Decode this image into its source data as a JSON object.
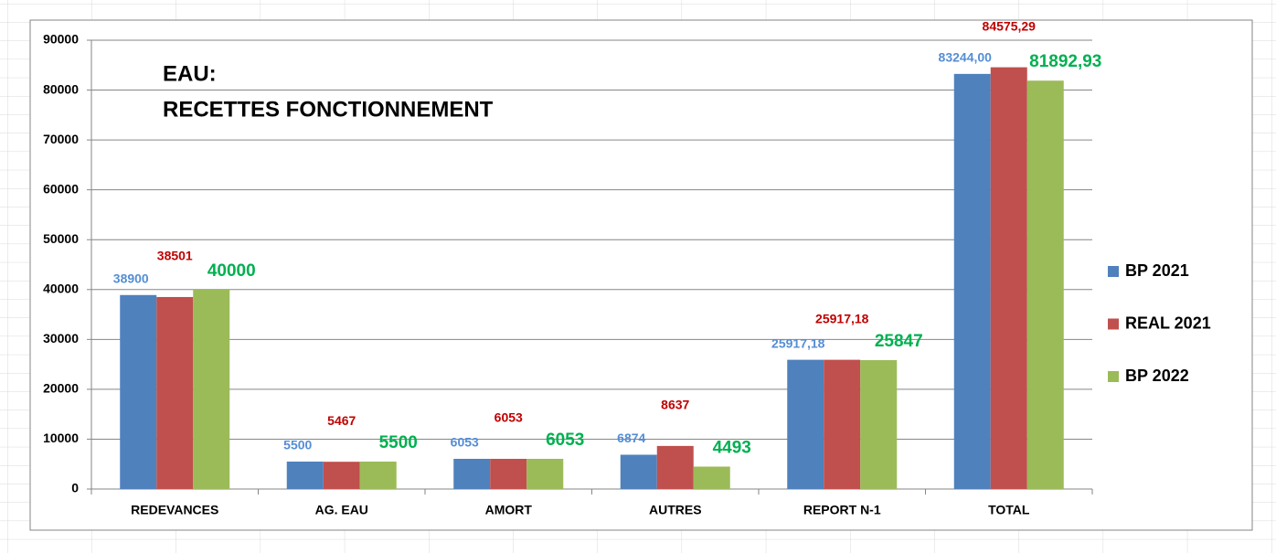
{
  "chart_data": {
    "type": "bar",
    "title": "EAU:",
    "subtitle": "RECETTES FONCTIONNEMENT",
    "categories": [
      "REDEVANCES",
      "AG. EAU",
      "AMORT",
      "AUTRES",
      "REPORT N-1",
      "TOTAL"
    ],
    "series": [
      {
        "name": "BP 2021",
        "color": "#4f81bd",
        "label_color": "#558ed5",
        "values": [
          38900,
          5500,
          6053,
          6874,
          25917.18,
          83244
        ],
        "value_labels": [
          "38900",
          "5500",
          "6053",
          "6874",
          "25917,18",
          "83244,00"
        ]
      },
      {
        "name": "REAL 2021",
        "color": "#c0504d",
        "label_color": "#c00000",
        "values": [
          38501,
          5467,
          6053,
          8637,
          25917.18,
          84575.29
        ],
        "value_labels": [
          "38501",
          "5467",
          "6053",
          "8637",
          "25917,18",
          "84575,29"
        ]
      },
      {
        "name": "BP 2022",
        "color": "#9bbb59",
        "label_color": "#00b050",
        "values": [
          40000,
          5500,
          6053,
          4493,
          25847,
          81892.93
        ],
        "value_labels": [
          "40000",
          "5500",
          "6053",
          "4493",
          "25847",
          "81892,93"
        ]
      }
    ],
    "ylim": [
      0,
      90000
    ],
    "yticks": [
      0,
      10000,
      20000,
      30000,
      40000,
      50000,
      60000,
      70000,
      80000,
      90000
    ],
    "grid": true,
    "legend": "right"
  }
}
